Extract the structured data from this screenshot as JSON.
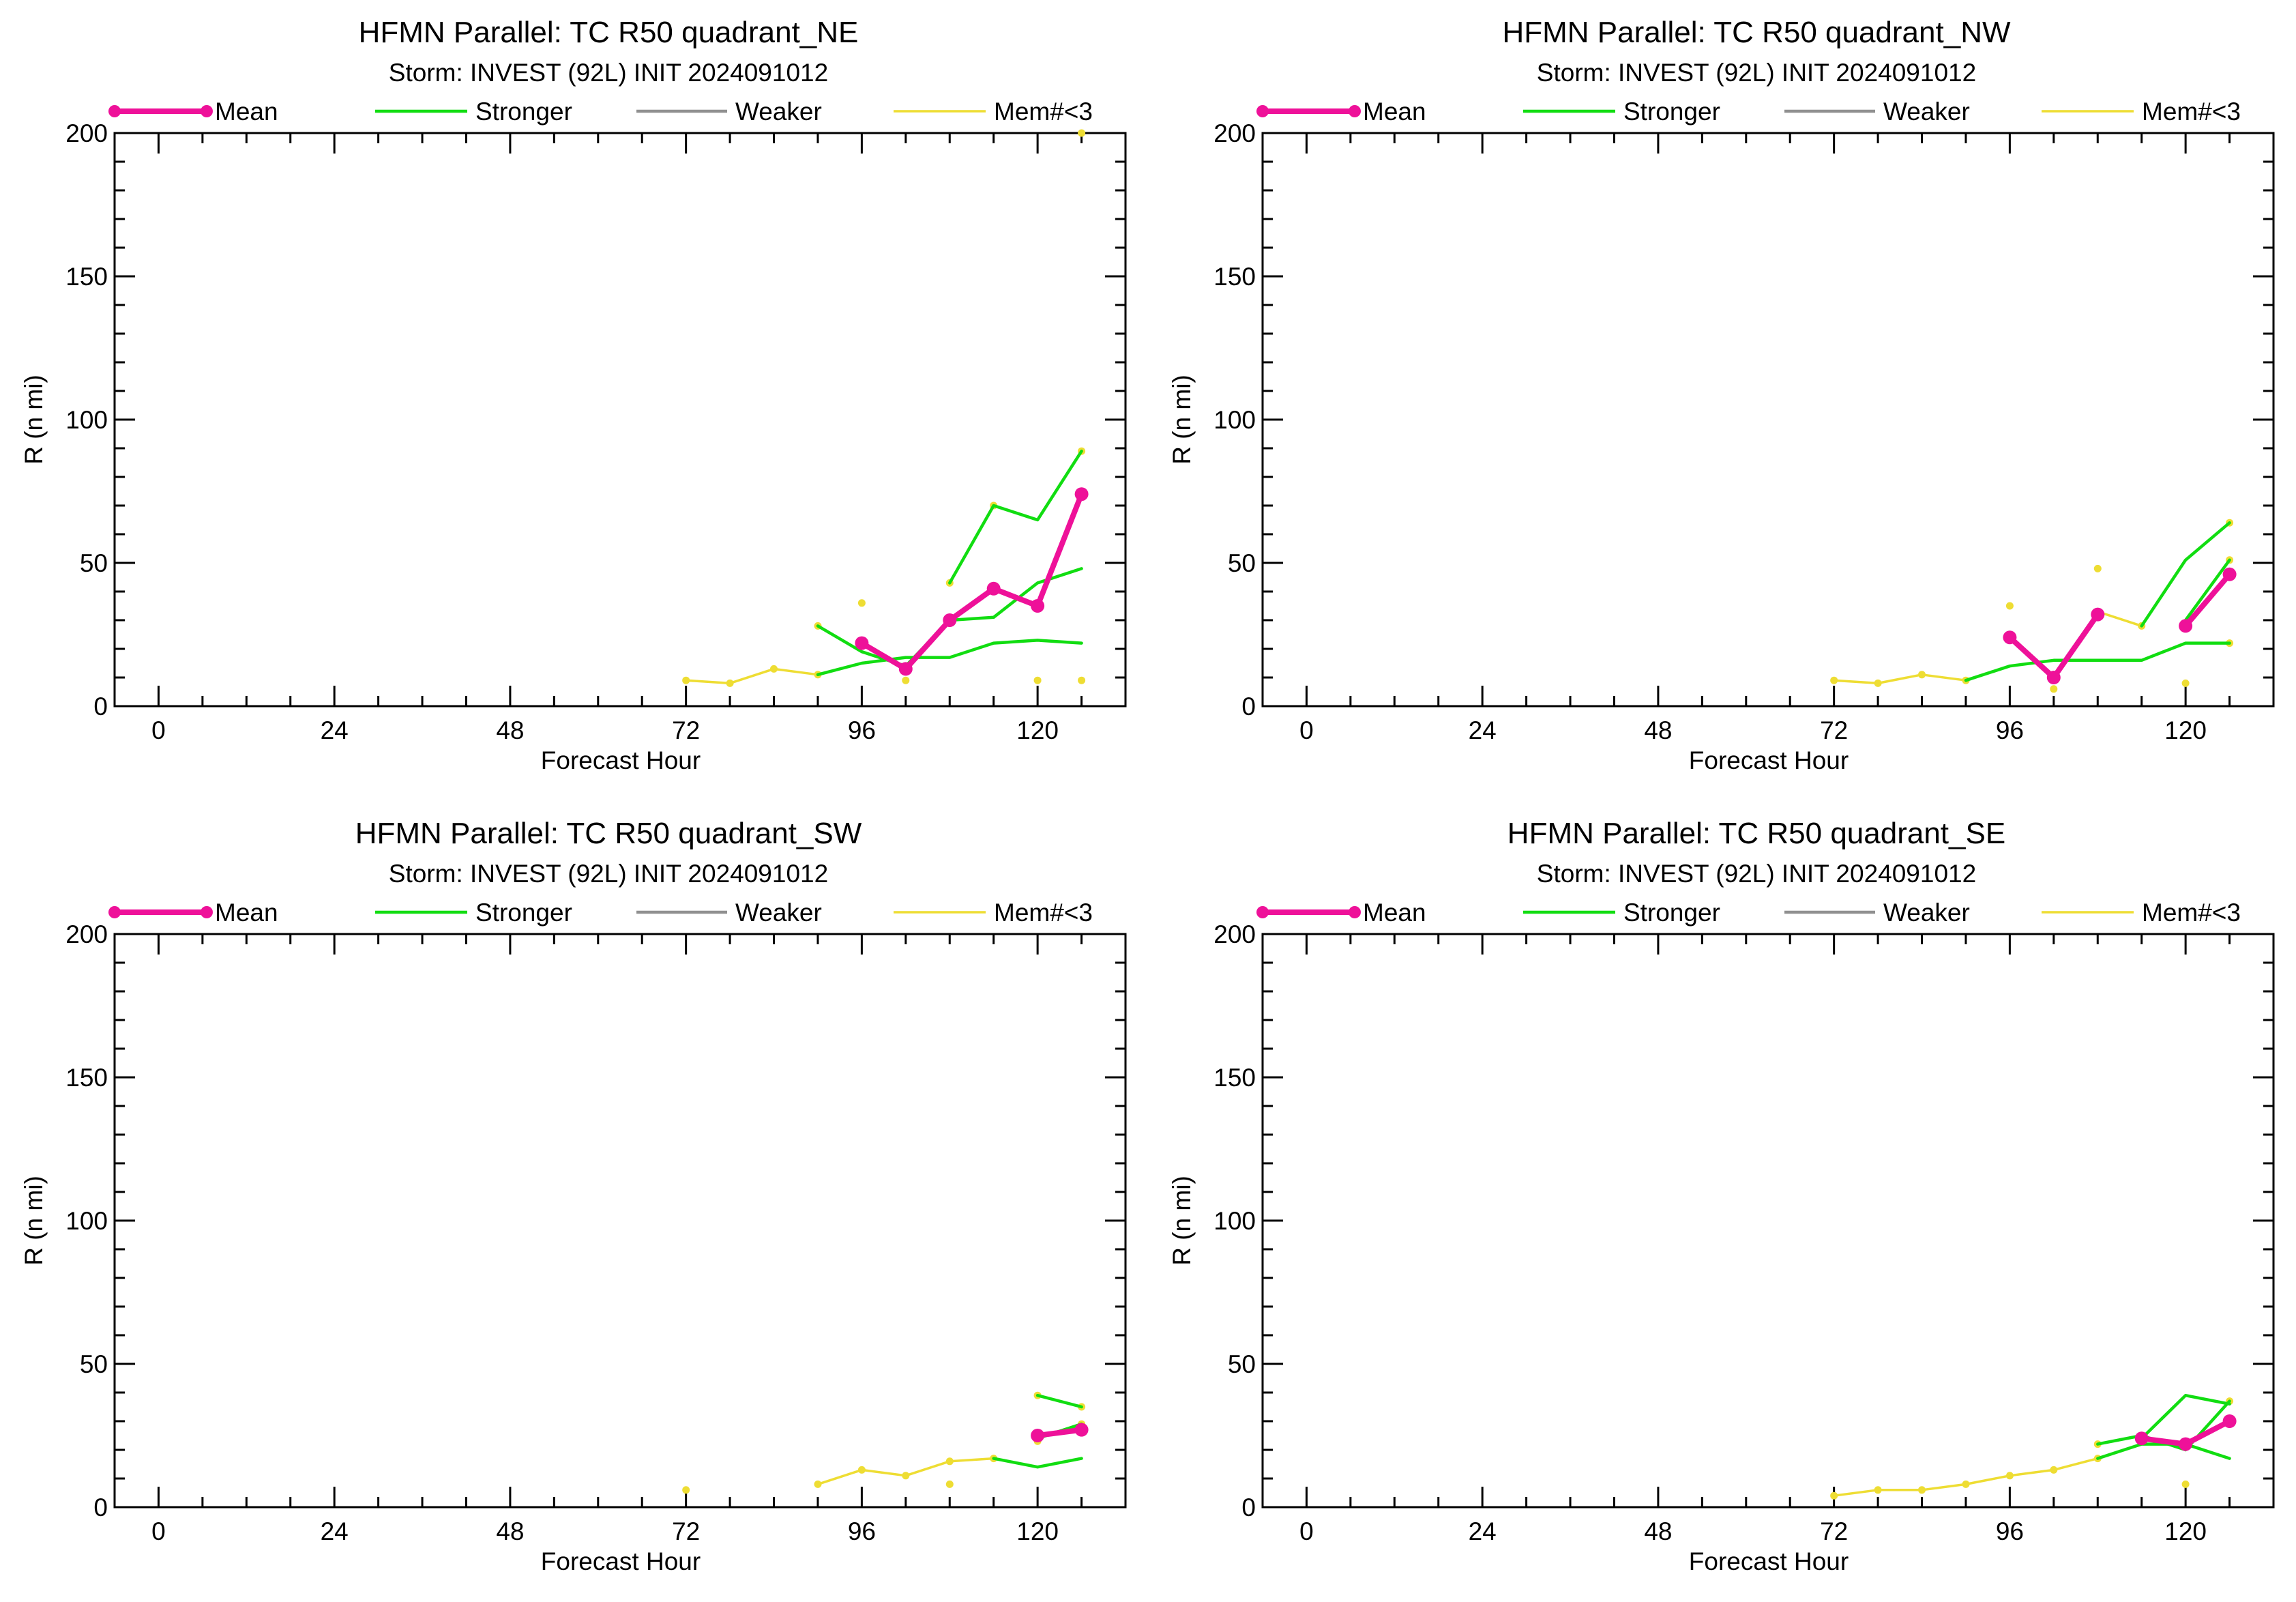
{
  "legend_labels": {
    "mean": "Mean",
    "stronger": "Stronger",
    "weaker": "Weaker",
    "few": "Mem#<3"
  },
  "colors": {
    "mean": "#ee1199",
    "stronger": "#11dd11",
    "weaker": "#909090",
    "few": "#eedd33",
    "axis": "#000000"
  },
  "chart_data": [
    {
      "type": "line",
      "title": "HFMN Parallel: TC  R50 quadrant_NE",
      "subtitle": "Storm: INVEST (92L) INIT 2024091012",
      "xlabel": "Forecast Hour",
      "ylabel": "R (n mi)",
      "xlim": [
        -6,
        132
      ],
      "ylim": [
        0,
        200
      ],
      "xticks": [
        0,
        24,
        48,
        72,
        96,
        120
      ],
      "yticks": [
        0,
        50,
        100,
        150,
        200
      ],
      "legend_position": "top",
      "series": [
        {
          "key": "few",
          "segments": [
            [
              [
                72,
                9
              ],
              [
                78,
                8
              ],
              [
                84,
                13
              ],
              [
                90,
                11
              ]
            ]
          ],
          "points": [
            [
              72,
              9
            ],
            [
              78,
              8
            ],
            [
              84,
              13
            ],
            [
              90,
              11
            ],
            [
              90,
              28
            ],
            [
              96,
              36
            ],
            [
              102,
              9
            ],
            [
              108,
              43
            ],
            [
              114,
              70
            ],
            [
              120,
              9
            ],
            [
              126,
              9
            ],
            [
              126,
              89
            ],
            [
              126,
              200
            ]
          ]
        },
        {
          "key": "stronger",
          "segments": [
            [
              [
                90,
                11
              ],
              [
                96,
                15
              ],
              [
                102,
                17
              ],
              [
                108,
                17
              ],
              [
                114,
                22
              ],
              [
                120,
                23
              ],
              [
                126,
                22
              ]
            ],
            [
              [
                90,
                28
              ],
              [
                96,
                19
              ],
              [
                102,
                14
              ],
              [
                108,
                30
              ],
              [
                114,
                31
              ],
              [
                120,
                43
              ],
              [
                126,
                48
              ]
            ],
            [
              [
                108,
                43
              ],
              [
                114,
                70
              ],
              [
                120,
                65
              ],
              [
                126,
                89
              ]
            ]
          ],
          "points": []
        },
        {
          "key": "mean",
          "segments": [
            [
              [
                96,
                22
              ],
              [
                102,
                13
              ],
              [
                108,
                30
              ],
              [
                114,
                41
              ],
              [
                120,
                35
              ],
              [
                126,
                74
              ]
            ]
          ],
          "points": [
            [
              96,
              22
            ],
            [
              102,
              13
            ],
            [
              108,
              30
            ],
            [
              114,
              41
            ],
            [
              120,
              35
            ],
            [
              126,
              74
            ]
          ]
        }
      ]
    },
    {
      "type": "line",
      "title": "HFMN Parallel: TC  R50 quadrant_NW",
      "subtitle": "Storm: INVEST (92L) INIT 2024091012",
      "xlabel": "Forecast Hour",
      "ylabel": "R (n mi)",
      "xlim": [
        -6,
        132
      ],
      "ylim": [
        0,
        200
      ],
      "xticks": [
        0,
        24,
        48,
        72,
        96,
        120
      ],
      "yticks": [
        0,
        50,
        100,
        150,
        200
      ],
      "legend_position": "top",
      "series": [
        {
          "key": "few",
          "segments": [
            [
              [
                72,
                9
              ],
              [
                78,
                8
              ],
              [
                84,
                11
              ],
              [
                90,
                9
              ]
            ],
            [
              [
                108,
                33
              ],
              [
                114,
                28
              ]
            ]
          ],
          "points": [
            [
              72,
              9
            ],
            [
              78,
              8
            ],
            [
              84,
              11
            ],
            [
              90,
              9
            ],
            [
              96,
              35
            ],
            [
              102,
              6
            ],
            [
              108,
              48
            ],
            [
              108,
              33
            ],
            [
              114,
              28
            ],
            [
              120,
              8
            ],
            [
              126,
              22
            ],
            [
              126,
              51
            ],
            [
              126,
              64
            ]
          ]
        },
        {
          "key": "stronger",
          "segments": [
            [
              [
                90,
                9
              ],
              [
                96,
                14
              ],
              [
                102,
                16
              ],
              [
                108,
                16
              ],
              [
                114,
                16
              ],
              [
                120,
                22
              ],
              [
                126,
                22
              ]
            ],
            [
              [
                96,
                24
              ],
              [
                102,
                10
              ],
              [
                108,
                32
              ]
            ],
            [
              [
                114,
                28
              ],
              [
                120,
                51
              ],
              [
                126,
                64
              ]
            ],
            [
              [
                120,
                30
              ],
              [
                126,
                51
              ]
            ]
          ],
          "points": []
        },
        {
          "key": "mean",
          "segments": [
            [
              [
                96,
                24
              ],
              [
                102,
                10
              ],
              [
                108,
                32
              ]
            ],
            [
              [
                120,
                28
              ],
              [
                126,
                46
              ]
            ]
          ],
          "points": [
            [
              96,
              24
            ],
            [
              102,
              10
            ],
            [
              108,
              32
            ],
            [
              120,
              28
            ],
            [
              126,
              46
            ]
          ]
        }
      ]
    },
    {
      "type": "line",
      "title": "HFMN Parallel: TC  R50 quadrant_SW",
      "subtitle": "Storm: INVEST (92L) INIT 2024091012",
      "xlabel": "Forecast Hour",
      "ylabel": "R (n mi)",
      "xlim": [
        -6,
        132
      ],
      "ylim": [
        0,
        200
      ],
      "xticks": [
        0,
        24,
        48,
        72,
        96,
        120
      ],
      "yticks": [
        0,
        50,
        100,
        150,
        200
      ],
      "legend_position": "top",
      "series": [
        {
          "key": "few",
          "segments": [
            [
              [
                90,
                8
              ],
              [
                96,
                13
              ],
              [
                102,
                11
              ],
              [
                108,
                16
              ],
              [
                114,
                17
              ]
            ]
          ],
          "points": [
            [
              72,
              6
            ],
            [
              90,
              8
            ],
            [
              96,
              13
            ],
            [
              102,
              11
            ],
            [
              108,
              8
            ],
            [
              108,
              16
            ],
            [
              114,
              17
            ],
            [
              120,
              23
            ],
            [
              120,
              39
            ],
            [
              126,
              29
            ],
            [
              126,
              35
            ]
          ]
        },
        {
          "key": "stronger",
          "segments": [
            [
              [
                114,
                17
              ],
              [
                120,
                14
              ],
              [
                126,
                17
              ]
            ],
            [
              [
                120,
                39
              ],
              [
                126,
                35
              ]
            ],
            [
              [
                120,
                24
              ],
              [
                126,
                29
              ]
            ]
          ],
          "points": []
        },
        {
          "key": "mean",
          "segments": [
            [
              [
                120,
                25
              ],
              [
                126,
                27
              ]
            ]
          ],
          "points": [
            [
              120,
              25
            ],
            [
              126,
              27
            ]
          ]
        }
      ]
    },
    {
      "type": "line",
      "title": "HFMN Parallel: TC  R50 quadrant_SE",
      "subtitle": "Storm: INVEST (92L) INIT 2024091012",
      "xlabel": "Forecast Hour",
      "ylabel": "R (n mi)",
      "xlim": [
        -6,
        132
      ],
      "ylim": [
        0,
        200
      ],
      "xticks": [
        0,
        24,
        48,
        72,
        96,
        120
      ],
      "yticks": [
        0,
        50,
        100,
        150,
        200
      ],
      "legend_position": "top",
      "series": [
        {
          "key": "few",
          "segments": [
            [
              [
                72,
                4
              ],
              [
                78,
                6
              ],
              [
                84,
                6
              ],
              [
                90,
                8
              ],
              [
                96,
                11
              ],
              [
                102,
                13
              ],
              [
                108,
                17
              ]
            ]
          ],
          "points": [
            [
              72,
              4
            ],
            [
              78,
              6
            ],
            [
              84,
              6
            ],
            [
              90,
              8
            ],
            [
              96,
              11
            ],
            [
              102,
              13
            ],
            [
              108,
              17
            ],
            [
              108,
              22
            ],
            [
              120,
              8
            ],
            [
              126,
              37
            ]
          ]
        },
        {
          "key": "stronger",
          "segments": [
            [
              [
                108,
                17
              ],
              [
                114,
                22
              ],
              [
                120,
                22
              ],
              [
                126,
                17
              ]
            ],
            [
              [
                108,
                22
              ],
              [
                114,
                25
              ],
              [
                120,
                20
              ],
              [
                126,
                37
              ]
            ],
            [
              [
                114,
                24
              ],
              [
                120,
                39
              ],
              [
                126,
                36
              ]
            ]
          ],
          "points": []
        },
        {
          "key": "mean",
          "segments": [
            [
              [
                114,
                24
              ],
              [
                120,
                22
              ],
              [
                126,
                30
              ]
            ]
          ],
          "points": [
            [
              114,
              24
            ],
            [
              120,
              22
            ],
            [
              126,
              30
            ]
          ]
        }
      ]
    }
  ]
}
